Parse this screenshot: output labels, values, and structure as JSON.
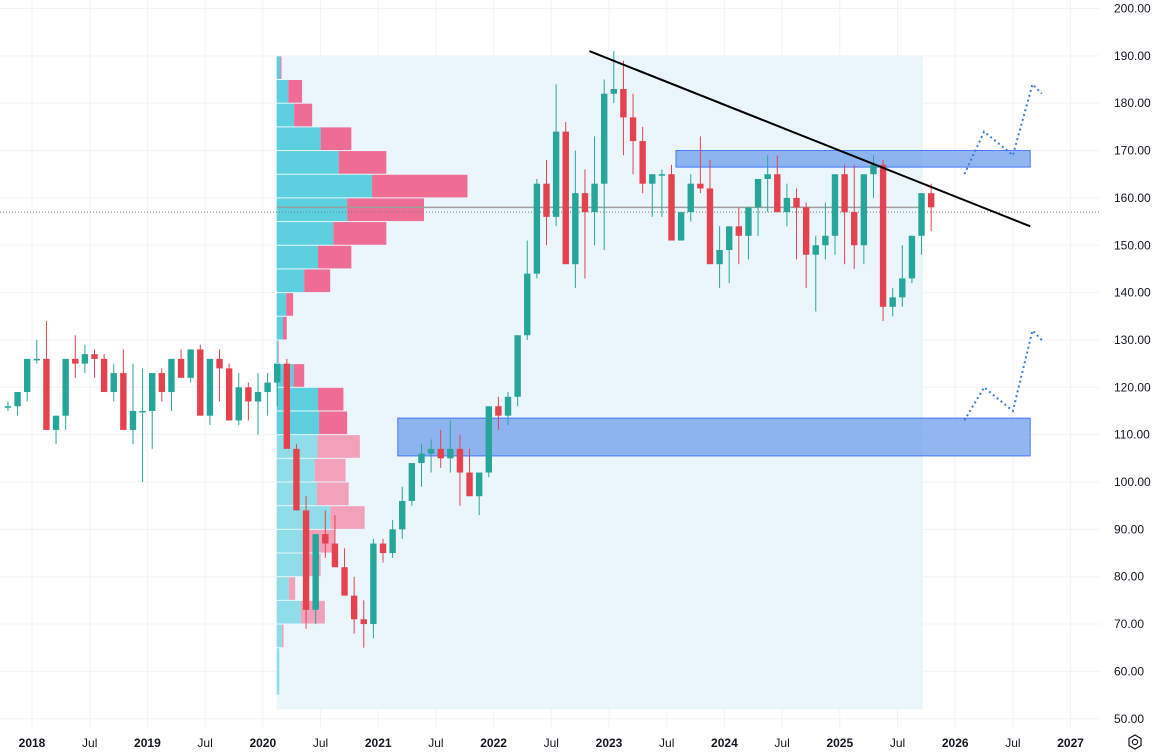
{
  "colors": {
    "up": "#26a69a",
    "down": "#e5424f",
    "grid": "#f0f3fa",
    "profile_highlight": "#eaf6fb",
    "vp_up": "#5dd0e0",
    "vp_down": "#ef6c95",
    "vp_up_light": "#8fdde9",
    "vp_down_light": "#f3a0bb",
    "zone": "#6d9eeb",
    "zone_border": "#2962ff",
    "trendline": "#000000",
    "projection": "#3d7bd6",
    "poc": "#9e9e9e",
    "current_price_line": "#787b86"
  },
  "chart_data": {
    "type": "candlestick",
    "timeframe": "monthly",
    "title": "",
    "xlabel": "",
    "ylabel": "",
    "ylim": [
      50,
      200
    ],
    "y_ticks": [
      "200.00",
      "190.00",
      "180.00",
      "170.00",
      "160.00",
      "150.00",
      "140.00",
      "130.00",
      "120.00",
      "110.00",
      "100.00",
      "90.00",
      "80.00",
      "70.00",
      "60.00",
      "50.00"
    ],
    "x_ticks": [
      {
        "label": "2018",
        "t": 2018.0,
        "bold": true
      },
      {
        "label": "Jul",
        "t": 2018.5,
        "bold": false
      },
      {
        "label": "2019",
        "t": 2019.0,
        "bold": true
      },
      {
        "label": "Jul",
        "t": 2019.5,
        "bold": false
      },
      {
        "label": "2020",
        "t": 2020.0,
        "bold": true
      },
      {
        "label": "Jul",
        "t": 2020.5,
        "bold": false
      },
      {
        "label": "2021",
        "t": 2021.0,
        "bold": true
      },
      {
        "label": "Jul",
        "t": 2021.5,
        "bold": false
      },
      {
        "label": "2022",
        "t": 2022.0,
        "bold": true
      },
      {
        "label": "Jul",
        "t": 2022.5,
        "bold": false
      },
      {
        "label": "2023",
        "t": 2023.0,
        "bold": true
      },
      {
        "label": "Jul",
        "t": 2023.5,
        "bold": false
      },
      {
        "label": "2024",
        "t": 2024.0,
        "bold": true
      },
      {
        "label": "Jul",
        "t": 2024.5,
        "bold": false
      },
      {
        "label": "2025",
        "t": 2025.0,
        "bold": true
      },
      {
        "label": "Jul",
        "t": 2025.5,
        "bold": false
      },
      {
        "label": "2026",
        "t": 2026.0,
        "bold": true
      },
      {
        "label": "Jul",
        "t": 2026.5,
        "bold": false
      },
      {
        "label": "2027",
        "t": 2027.0,
        "bold": true
      }
    ],
    "grid": true,
    "start": "2017-10",
    "candles_ohlc": [
      [
        116,
        117,
        115,
        116
      ],
      [
        116,
        118,
        114,
        119
      ],
      [
        119,
        121,
        117,
        126
      ],
      [
        126,
        130,
        125,
        126
      ],
      [
        126,
        134,
        113,
        111
      ],
      [
        111,
        114,
        108,
        114
      ],
      [
        114,
        122,
        111,
        126
      ],
      [
        126,
        131,
        122,
        125
      ],
      [
        125,
        129,
        123,
        127
      ],
      [
        127,
        128,
        122,
        126
      ],
      [
        126,
        127,
        119,
        119
      ],
      [
        119,
        125,
        117,
        123
      ],
      [
        123,
        128,
        119,
        111
      ],
      [
        111,
        125,
        108,
        115
      ],
      [
        115,
        124,
        100,
        115
      ],
      [
        115,
        118,
        107,
        123
      ],
      [
        123,
        124,
        117,
        119
      ],
      [
        119,
        126,
        115,
        126
      ],
      [
        126,
        128,
        123,
        122
      ],
      [
        122,
        126,
        121,
        128
      ],
      [
        128,
        129,
        120,
        114
      ],
      [
        114,
        125,
        112,
        126
      ],
      [
        126,
        128,
        117,
        124
      ],
      [
        124,
        125,
        117,
        113
      ],
      [
        113,
        123,
        112,
        120
      ],
      [
        120,
        121,
        113,
        117
      ],
      [
        117,
        123,
        110,
        119
      ],
      [
        119,
        123,
        114,
        121
      ],
      [
        121,
        123,
        116,
        125
      ],
      [
        125,
        126,
        120,
        107
      ],
      [
        107,
        108,
        95,
        94
      ],
      [
        94,
        97,
        69,
        73
      ],
      [
        73,
        89,
        70,
        89
      ],
      [
        89,
        94,
        84,
        87
      ],
      [
        87,
        93,
        85,
        82
      ],
      [
        82,
        86,
        76,
        76
      ],
      [
        76,
        80,
        68,
        71
      ],
      [
        71,
        75,
        65,
        70
      ],
      [
        70,
        88,
        67,
        87
      ],
      [
        87,
        88,
        83,
        85
      ],
      [
        85,
        92,
        84,
        90
      ],
      [
        90,
        99,
        88,
        96
      ],
      [
        96,
        100,
        95,
        104
      ],
      [
        104,
        108,
        99,
        106
      ],
      [
        106,
        109,
        102,
        107
      ],
      [
        107,
        111,
        103,
        105
      ],
      [
        105,
        113,
        102,
        107
      ],
      [
        107,
        110,
        95,
        102
      ],
      [
        102,
        107,
        97,
        97
      ],
      [
        97,
        101,
        93,
        102
      ],
      [
        102,
        114,
        101,
        116
      ],
      [
        116,
        118,
        111,
        114
      ],
      [
        114,
        119,
        112,
        118
      ],
      [
        118,
        130,
        116,
        131
      ],
      [
        131,
        151,
        130,
        144
      ],
      [
        144,
        164,
        143,
        163
      ],
      [
        163,
        168,
        150,
        156
      ],
      [
        156,
        184,
        154,
        174
      ],
      [
        174,
        176,
        152,
        146
      ],
      [
        146,
        170,
        141,
        161
      ],
      [
        161,
        166,
        143,
        157
      ],
      [
        157,
        173,
        150,
        163
      ],
      [
        163,
        185,
        149,
        182
      ],
      [
        182,
        191,
        180,
        183
      ],
      [
        183,
        189,
        169,
        177
      ],
      [
        177,
        182,
        165,
        172
      ],
      [
        172,
        175,
        161,
        163
      ],
      [
        163,
        164,
        156,
        165
      ],
      [
        165,
        166,
        156,
        165
      ],
      [
        165,
        167,
        154,
        151
      ],
      [
        151,
        157,
        152,
        157
      ],
      [
        157,
        165,
        155,
        163
      ],
      [
        163,
        173,
        161,
        162
      ],
      [
        162,
        168,
        156,
        146
      ],
      [
        146,
        154,
        141,
        149
      ],
      [
        149,
        150,
        142,
        154
      ],
      [
        154,
        158,
        146,
        152
      ],
      [
        152,
        155,
        147,
        158
      ],
      [
        158,
        163,
        152,
        164
      ],
      [
        164,
        169,
        157,
        165
      ],
      [
        165,
        169,
        158,
        157
      ],
      [
        157,
        163,
        154,
        160
      ],
      [
        160,
        162,
        147,
        158
      ],
      [
        158,
        159,
        141,
        148
      ],
      [
        148,
        152,
        136,
        150
      ],
      [
        150,
        159,
        147,
        152
      ],
      [
        152,
        162,
        148,
        165
      ],
      [
        165,
        167,
        146,
        157
      ],
      [
        157,
        167,
        145,
        150
      ],
      [
        150,
        163,
        146,
        165
      ],
      [
        165,
        169,
        160,
        167
      ],
      [
        167,
        168,
        134,
        137
      ],
      [
        137,
        141,
        135,
        139
      ],
      [
        139,
        150,
        137,
        143
      ],
      [
        143,
        152,
        142,
        152
      ],
      [
        152,
        161,
        148,
        161
      ],
      [
        161,
        163,
        153,
        158
      ]
    ],
    "volume_profile": {
      "full": [
        {
          "lo": 185,
          "hi": 190,
          "up": 0.7,
          "down": 0.2
        },
        {
          "lo": 180,
          "hi": 185,
          "up": 2.2,
          "down": 2.6
        },
        {
          "lo": 175,
          "hi": 180,
          "up": 3.3,
          "down": 3.4
        },
        {
          "lo": 170,
          "hi": 175,
          "up": 8.3,
          "down": 5.8
        },
        {
          "lo": 165,
          "hi": 170,
          "up": 11.7,
          "down": 9.0
        },
        {
          "lo": 160,
          "hi": 165,
          "up": 18.0,
          "down": 18.0
        },
        {
          "lo": 155,
          "hi": 160,
          "up": 13.3,
          "down": 14.5
        },
        {
          "lo": 150,
          "hi": 155,
          "up": 10.7,
          "down": 10.0
        },
        {
          "lo": 145,
          "hi": 150,
          "up": 7.8,
          "down": 6.3
        },
        {
          "lo": 140,
          "hi": 145,
          "up": 5.2,
          "down": 4.9
        },
        {
          "lo": 135,
          "hi": 140,
          "up": 1.8,
          "down": 1.3
        },
        {
          "lo": 130,
          "hi": 135,
          "up": 1.2,
          "down": 0.7
        },
        {
          "lo": 125,
          "hi": 130,
          "up": 0.3,
          "down": 0.1
        },
        {
          "lo": 120,
          "hi": 125,
          "up": 3.2,
          "down": 2.0
        },
        {
          "lo": 115,
          "hi": 120,
          "up": 7.8,
          "down": 4.8
        },
        {
          "lo": 110,
          "hi": 115,
          "up": 8.0,
          "down": 5.3
        }
      ],
      "lower": [
        {
          "lo": 105,
          "hi": 110,
          "up": 7.7,
          "down": 8.0
        },
        {
          "lo": 100,
          "hi": 105,
          "up": 7.2,
          "down": 5.8
        },
        {
          "lo": 95,
          "hi": 100,
          "up": 7.6,
          "down": 6.0
        },
        {
          "lo": 90,
          "hi": 95,
          "up": 10.1,
          "down": 6.5
        },
        {
          "lo": 85,
          "hi": 90,
          "up": 5.9,
          "down": 5.0
        },
        {
          "lo": 80,
          "hi": 85,
          "up": 5.1,
          "down": 3.2
        },
        {
          "lo": 75,
          "hi": 80,
          "up": 2.3,
          "down": 1.2
        },
        {
          "lo": 70,
          "hi": 75,
          "up": 4.6,
          "down": 4.5
        },
        {
          "lo": 65,
          "hi": 70,
          "up": 1.0,
          "down": 0.3
        },
        {
          "lo": 55,
          "hi": 65,
          "up": 0.5,
          "down": 0.0
        }
      ],
      "poc_price": 158
    },
    "current_price": 157,
    "zones": [
      {
        "price_hi": 170,
        "price_lo": 166.5,
        "t_start": 2023.58,
        "t_end": 2026.65
      },
      {
        "price_hi": 113.5,
        "price_lo": 105.5,
        "t_start": 2021.17,
        "t_end": 2026.65
      }
    ],
    "trendline": {
      "t1": 2022.83,
      "p1": 191,
      "t2": 2026.65,
      "p2": 154
    },
    "projections": [
      [
        [
          2026.08,
          165
        ],
        [
          2026.25,
          174
        ],
        [
          2026.5,
          169
        ],
        [
          2026.67,
          184
        ],
        [
          2026.75,
          182
        ]
      ],
      [
        [
          2026.08,
          113
        ],
        [
          2026.25,
          120
        ],
        [
          2026.5,
          115
        ],
        [
          2026.67,
          132
        ],
        [
          2026.75,
          130
        ]
      ]
    ]
  },
  "ui": {
    "settings_icon": "gear-icon"
  }
}
